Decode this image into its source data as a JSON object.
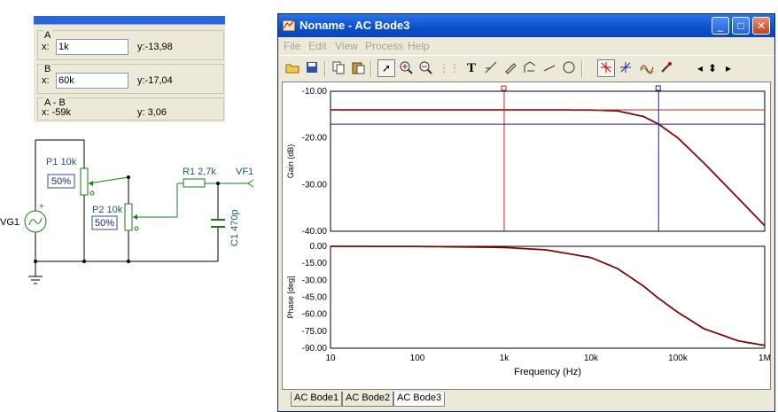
{
  "cursors": {
    "a": {
      "title": "A",
      "x_label": "x:",
      "x_value": "1k",
      "y_text": "y:-13,98"
    },
    "b": {
      "title": "B",
      "x_label": "x:",
      "x_value": "60k",
      "y_text": "y:-17,04"
    },
    "diff": {
      "title": "A - B",
      "x_text": "x: -59k",
      "y_text": "y: 3,06"
    }
  },
  "circuit": {
    "p1_label": "P1 10k",
    "p1_setting": "50%",
    "p2_label": "P2 10k",
    "p2_setting": "50%",
    "r1_label": "R1 2,7k",
    "c1_label": "C1 470p",
    "vg1_label": "VG1",
    "vf1_label": "VF1",
    "plus": "+"
  },
  "window": {
    "title": "Noname - AC Bode3",
    "menu": [
      "File",
      "Edit",
      "View",
      "Process",
      "Help"
    ],
    "tabs": [
      "AC Bode1",
      "AC Bode2",
      "AC Bode3"
    ],
    "active_tab": 2
  },
  "colors": {
    "trace": "#7a0a0a",
    "cursor_a": "#cc2222",
    "cursor_b": "#22228a",
    "grid": "#b0b0b0"
  },
  "chart_data": [
    {
      "type": "line",
      "ylabel": "Gain (dB)",
      "x_scale": "log",
      "xlim": [
        10,
        1000000
      ],
      "ylim": [
        -40,
        -10
      ],
      "yticks": [
        "-10.00",
        "-20.00",
        "-30.00",
        "-40.00"
      ],
      "grid": true,
      "series": [
        {
          "x": [
            10,
            100,
            1000,
            5000,
            10000,
            20000,
            40000,
            60000,
            100000,
            200000,
            500000,
            1000000
          ],
          "y": [
            -13.98,
            -13.98,
            -13.98,
            -13.99,
            -14.02,
            -14.2,
            -15.4,
            -17.04,
            -20.0,
            -25.4,
            -33.0,
            -38.8
          ]
        }
      ],
      "cursor_a": {
        "x": 1000,
        "y": -13.98
      },
      "cursor_b": {
        "x": 60000,
        "y": -17.04
      }
    },
    {
      "type": "line",
      "xlabel": "Frequency (Hz)",
      "ylabel": "Phase [deg]",
      "x_scale": "log",
      "xlim": [
        10,
        1000000
      ],
      "ylim": [
        -90,
        0
      ],
      "xticks": [
        "10",
        "100",
        "1k",
        "10k",
        "100k",
        "1M"
      ],
      "yticks": [
        "0.00",
        "-15.00",
        "-30.00",
        "-45.00",
        "-60.00",
        "-75.00",
        "-90.00"
      ],
      "grid": true,
      "series": [
        {
          "x": [
            10,
            100,
            1000,
            3000,
            10000,
            20000,
            40000,
            60000,
            100000,
            200000,
            500000,
            1000000
          ],
          "y": [
            0,
            -0.1,
            -1.0,
            -3.1,
            -9.9,
            -19.5,
            -35.0,
            -46.0,
            -58.3,
            -72.8,
            -83.6,
            -87.5
          ]
        }
      ]
    }
  ]
}
